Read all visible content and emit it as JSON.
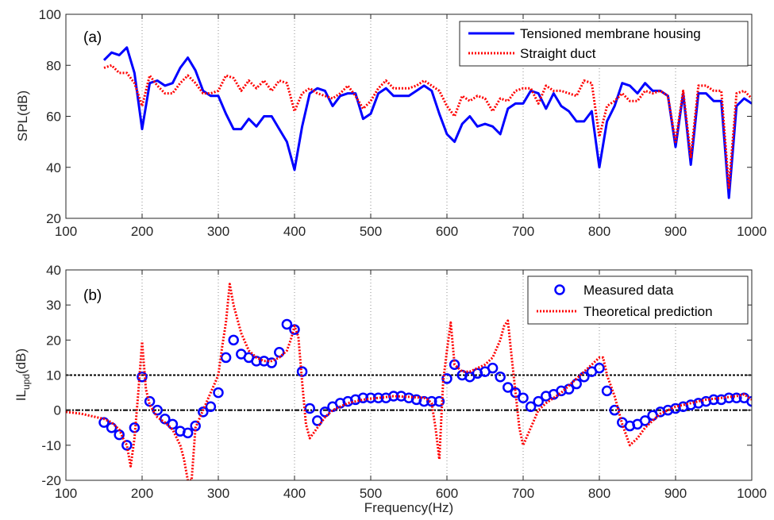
{
  "chart_data": [
    {
      "type": "line",
      "panel_label": "(a)",
      "xlabel": "",
      "ylabel": "SPL(dB)",
      "xlim": [
        100,
        1000
      ],
      "ylim": [
        20,
        100
      ],
      "xticks": [
        100,
        200,
        300,
        400,
        500,
        600,
        700,
        800,
        900,
        1000
      ],
      "yticks": [
        20,
        40,
        60,
        80,
        100
      ],
      "grid": "x-dotted",
      "legend": "top-right",
      "series": [
        {
          "name": "Tensioned membrane housing",
          "color": "#0000ff",
          "style": "solid",
          "x": [
            150,
            160,
            170,
            180,
            190,
            200,
            210,
            220,
            230,
            240,
            250,
            260,
            270,
            280,
            290,
            300,
            310,
            320,
            330,
            340,
            350,
            360,
            370,
            380,
            390,
            400,
            410,
            420,
            430,
            440,
            450,
            460,
            470,
            480,
            490,
            500,
            510,
            520,
            530,
            540,
            550,
            560,
            570,
            580,
            590,
            600,
            610,
            620,
            630,
            640,
            650,
            660,
            670,
            680,
            690,
            700,
            710,
            720,
            730,
            740,
            750,
            760,
            770,
            780,
            790,
            800,
            810,
            820,
            830,
            840,
            850,
            860,
            870,
            880,
            890,
            900,
            910,
            920,
            930,
            940,
            950,
            960,
            970,
            980,
            990,
            1000
          ],
          "y": [
            82,
            85,
            84,
            87,
            77,
            55,
            73,
            74,
            72,
            73,
            79,
            83,
            78,
            70,
            68,
            68,
            61,
            55,
            55,
            59,
            56,
            60,
            60,
            55,
            50,
            39,
            56,
            69,
            71,
            70,
            64,
            68,
            69,
            69,
            59,
            61,
            69,
            71,
            68,
            68,
            68,
            70,
            72,
            70,
            61,
            53,
            50,
            57,
            60,
            56,
            57,
            56,
            53,
            63,
            65,
            65,
            70,
            69,
            63,
            69,
            64,
            62,
            58,
            58,
            62,
            40,
            58,
            64,
            73,
            72,
            69,
            73,
            70,
            70,
            68,
            48,
            69,
            41,
            69,
            69,
            66,
            66,
            28,
            64,
            67,
            65
          ]
        },
        {
          "name": "Straight duct",
          "color": "#ff0000",
          "style": "dotted",
          "x": [
            150,
            160,
            170,
            180,
            190,
            200,
            210,
            220,
            230,
            240,
            250,
            260,
            270,
            280,
            290,
            300,
            310,
            320,
            330,
            340,
            350,
            360,
            370,
            380,
            390,
            400,
            410,
            420,
            430,
            440,
            450,
            460,
            470,
            480,
            490,
            500,
            510,
            520,
            530,
            540,
            550,
            560,
            570,
            580,
            590,
            600,
            610,
            620,
            630,
            640,
            650,
            660,
            670,
            680,
            690,
            700,
            710,
            720,
            730,
            740,
            750,
            760,
            770,
            780,
            790,
            800,
            810,
            820,
            830,
            840,
            850,
            860,
            870,
            880,
            890,
            900,
            910,
            920,
            930,
            940,
            950,
            960,
            970,
            980,
            990,
            1000
          ],
          "y": [
            79,
            80,
            77,
            77,
            73,
            64,
            76,
            72,
            69,
            69,
            73,
            76,
            73,
            69,
            69,
            70,
            76,
            75,
            70,
            74,
            71,
            74,
            70,
            74,
            73,
            62,
            69,
            71,
            69,
            68,
            67,
            69,
            72,
            68,
            63,
            66,
            71,
            74,
            71,
            71,
            71,
            72,
            74,
            72,
            70,
            64,
            60,
            68,
            66,
            68,
            67,
            62,
            67,
            66,
            70,
            71,
            71,
            65,
            72,
            70,
            70,
            69,
            68,
            74,
            73,
            52,
            64,
            66,
            69,
            66,
            66,
            70,
            69,
            70,
            68,
            50,
            70,
            44,
            72,
            72,
            70,
            70,
            32,
            69,
            70,
            67
          ]
        }
      ]
    },
    {
      "type": "scatter",
      "panel_label": "(b)",
      "xlabel": "Frequency(Hz)",
      "ylabel_main": "IL",
      "ylabel_sub": "upd",
      "ylabel_unit": "(dB)",
      "xlim": [
        100,
        1000
      ],
      "ylim": [
        -20,
        40
      ],
      "xticks": [
        100,
        200,
        300,
        400,
        500,
        600,
        700,
        800,
        900,
        1000
      ],
      "yticks": [
        -20,
        -10,
        0,
        10,
        20,
        30,
        40
      ],
      "grid": "x-dotted",
      "reference_lines": [
        10,
        0
      ],
      "legend": "top-right",
      "series": [
        {
          "name": "Measured data",
          "color": "#0000ff",
          "marker": "circle",
          "x": [
            150,
            160,
            170,
            180,
            190,
            200,
            210,
            220,
            230,
            240,
            250,
            260,
            270,
            280,
            290,
            300,
            310,
            320,
            330,
            340,
            350,
            360,
            370,
            380,
            390,
            400,
            410,
            420,
            430,
            440,
            450,
            460,
            470,
            480,
            490,
            500,
            510,
            520,
            530,
            540,
            550,
            560,
            570,
            580,
            590,
            600,
            610,
            620,
            630,
            640,
            650,
            660,
            670,
            680,
            690,
            700,
            710,
            720,
            730,
            740,
            750,
            760,
            770,
            780,
            790,
            800,
            810,
            820,
            830,
            840,
            850,
            860,
            870,
            880,
            890,
            900,
            910,
            920,
            930,
            940,
            950,
            960,
            970,
            980,
            990,
            1000
          ],
          "y": [
            -3.5,
            -5,
            -7,
            -10,
            -5,
            9.5,
            2.5,
            0,
            -2.5,
            -4,
            -6,
            -6.5,
            -4.5,
            -0.5,
            1,
            5,
            15,
            20,
            16,
            15,
            14,
            14,
            13.5,
            16.5,
            24.5,
            23,
            11,
            0.5,
            -3,
            -0.5,
            1,
            2,
            2.5,
            3,
            3.5,
            3.5,
            3.5,
            3.5,
            4,
            4,
            3.5,
            3,
            2.5,
            2.5,
            2.5,
            9,
            13,
            10,
            9.5,
            10.5,
            11,
            12,
            9.5,
            6.5,
            5,
            3.5,
            1,
            2.5,
            4,
            4.5,
            5.5,
            6,
            7.5,
            9.5,
            11,
            12,
            5.5,
            0,
            -3.5,
            -4.5,
            -4,
            -3,
            -1.5,
            -0.5,
            0,
            0.5,
            1,
            1.5,
            2,
            2.5,
            3,
            3,
            3.5,
            3.5,
            3.5,
            2.5
          ]
        },
        {
          "name": "Theoretical prediction",
          "color": "#ff0000",
          "style": "dotted",
          "x": [
            100,
            120,
            140,
            150,
            160,
            170,
            175,
            180,
            185,
            190,
            195,
            200,
            205,
            210,
            220,
            230,
            240,
            250,
            255,
            260,
            265,
            270,
            280,
            290,
            300,
            305,
            310,
            315,
            320,
            330,
            340,
            350,
            360,
            370,
            380,
            390,
            395,
            400,
            405,
            410,
            415,
            420,
            430,
            440,
            450,
            470,
            490,
            510,
            530,
            550,
            570,
            575,
            580,
            585,
            590,
            595,
            600,
            605,
            610,
            620,
            630,
            640,
            650,
            660,
            670,
            675,
            680,
            685,
            690,
            695,
            700,
            710,
            720,
            730,
            740,
            750,
            760,
            770,
            780,
            790,
            795,
            800,
            805,
            810,
            820,
            830,
            840,
            850,
            860,
            870,
            880,
            900,
            920,
            940,
            960,
            980,
            990,
            1000
          ],
          "y": [
            -0.5,
            -1,
            -2,
            -2.5,
            -3.5,
            -5.5,
            -8,
            -10,
            -16,
            -8,
            5,
            19.5,
            6,
            1.5,
            -2,
            -3.5,
            -5.5,
            -10,
            -14,
            -20,
            -20,
            -5,
            0,
            5,
            10,
            18,
            25,
            36,
            30,
            22,
            17,
            15,
            14,
            14,
            15,
            17,
            20,
            24,
            21,
            8,
            -4,
            -8,
            -5,
            -2,
            0,
            2,
            3,
            3.5,
            4,
            3.8,
            3.5,
            3,
            2,
            -5,
            -14,
            8,
            17,
            25,
            13,
            11,
            11,
            12,
            13,
            15,
            20,
            24,
            25.5,
            15,
            5,
            -5,
            -10,
            -5,
            0,
            2,
            3.5,
            5,
            7,
            9,
            11,
            13,
            14,
            15,
            15,
            10,
            4,
            -4,
            -10,
            -8,
            -5,
            -3,
            -1,
            1,
            2,
            3,
            3.5,
            4,
            4.5,
            3
          ]
        }
      ]
    }
  ]
}
